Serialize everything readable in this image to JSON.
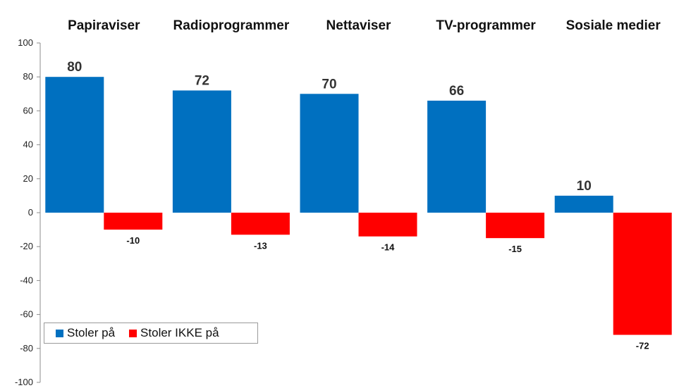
{
  "chart_data": {
    "type": "bar",
    "categories": [
      "Papiraviser",
      "Radioprogrammer",
      "Nettaviser",
      "TV-programmer",
      "Sosiale medier"
    ],
    "series": [
      {
        "name": "Stoler på",
        "values": [
          80,
          72,
          70,
          66,
          10
        ],
        "color": "#0070C0"
      },
      {
        "name": "Stoler IKKE på",
        "values": [
          -10,
          -13,
          -14,
          -15,
          -72
        ],
        "color": "#FF0000"
      }
    ],
    "ylim": [
      -100,
      100
    ],
    "yticks": [
      100,
      80,
      60,
      40,
      20,
      0,
      -20,
      -40,
      -60,
      -80,
      -100
    ],
    "xlabel": "",
    "ylabel": "",
    "title": "",
    "grid": false,
    "legend_position": "bottom-left"
  }
}
